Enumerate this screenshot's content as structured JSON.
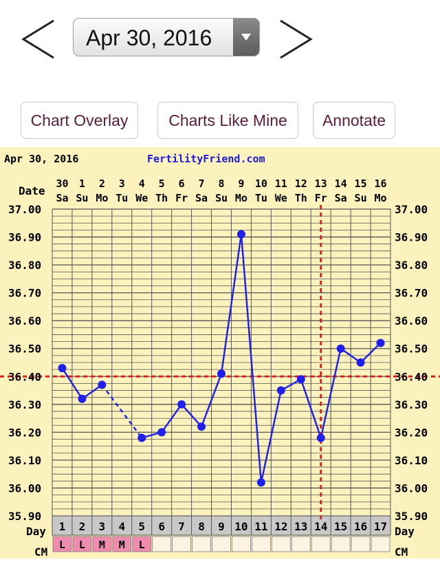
{
  "nav": {
    "prev_label": "<",
    "next_label": ">",
    "date_select_value": "Apr 30, 2016",
    "dropdown_icon": "triangle-down-icon"
  },
  "buttons": {
    "chart_overlay": "Chart Overlay",
    "charts_like_mine": "Charts Like Mine",
    "annotate": "Annotate"
  },
  "chart_data": {
    "type": "line",
    "header_date": "Apr 30, 2016",
    "site": "FertilityFriend.com",
    "date_row_label": "Date",
    "day_row_label": "Day",
    "cm_row_label": "CM",
    "dates": [
      "30",
      "1",
      "2",
      "3",
      "4",
      "5",
      "6",
      "7",
      "8",
      "9",
      "10",
      "11",
      "12",
      "13",
      "14",
      "15",
      "16"
    ],
    "weekdays": [
      "Sa",
      "Su",
      "Mo",
      "Tu",
      "We",
      "Th",
      "Fr",
      "Sa",
      "Su",
      "Mo",
      "Tu",
      "We",
      "Th",
      "Fr",
      "Sa",
      "Su",
      "Mo"
    ],
    "cycle_days": [
      1,
      2,
      3,
      4,
      5,
      6,
      7,
      8,
      9,
      10,
      11,
      12,
      13,
      14,
      15,
      16,
      17
    ],
    "temperatures": [
      36.43,
      36.32,
      36.37,
      null,
      36.18,
      36.2,
      36.3,
      36.22,
      36.41,
      36.91,
      36.02,
      36.35,
      36.39,
      36.18,
      36.5,
      36.45,
      36.52
    ],
    "cm": [
      "L",
      "L",
      "M",
      "M",
      "L",
      "",
      "",
      "",
      "",
      "",
      "",
      "",
      "",
      "",
      "",
      "",
      ""
    ],
    "ylim": [
      35.9,
      37.0
    ],
    "y_ticks": [
      "37.00",
      "36.90",
      "36.80",
      "36.70",
      "36.60",
      "36.50",
      "36.40",
      "36.30",
      "36.20",
      "36.10",
      "36.00",
      "35.90"
    ],
    "coverline": 36.4,
    "ovulation_day": 14,
    "colors": {
      "background": "#fcf2bd",
      "grid": "#555555",
      "line": "#2323e0",
      "marker": "#2020e8",
      "coverline": "#e02020",
      "site_text": "#1a1ad8",
      "day_row": "#c8c8c8",
      "cm_cell": "#f08cb0",
      "cm_empty": "#fdf3e3"
    }
  }
}
